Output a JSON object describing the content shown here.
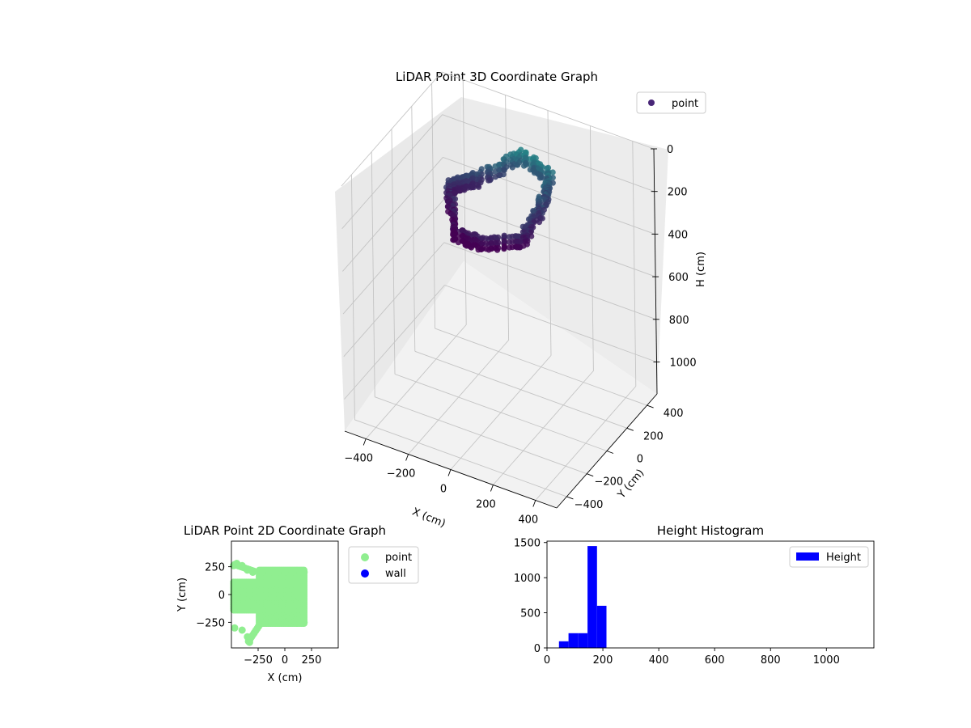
{
  "chart_data": [
    {
      "type": "scatter",
      "projection": "3d",
      "title": "LiDAR Point 3D Coordinate Graph",
      "xlabel": "X (cm)",
      "ylabel": "Y (cm)",
      "zlabel": "H (cm)",
      "xticks": [
        -400,
        -200,
        0,
        200,
        400
      ],
      "yticks": [
        -400,
        -200,
        0,
        200,
        400
      ],
      "zticks": [
        0,
        200,
        400,
        600,
        800,
        1000
      ],
      "zinverted": true,
      "legend": {
        "placement": "top-right",
        "entries": [
          {
            "label": "point",
            "color": "#482677"
          }
        ]
      },
      "colormap": "viridis",
      "series": [
        {
          "name": "point",
          "points": [
            {
              "x": -230,
              "y": 10,
              "h": 160
            },
            {
              "x": -200,
              "y": 60,
              "h": 150
            },
            {
              "x": -150,
              "y": 100,
              "h": 140
            },
            {
              "x": 0,
              "y": 250,
              "h": 60
            },
            {
              "x": 150,
              "y": 200,
              "h": 80
            },
            {
              "x": 180,
              "y": 50,
              "h": 130
            },
            {
              "x": 180,
              "y": -150,
              "h": 180
            },
            {
              "x": 20,
              "y": -230,
              "h": 200
            },
            {
              "x": -120,
              "y": -200,
              "h": 220
            }
          ]
        }
      ]
    },
    {
      "type": "scatter",
      "title": "LiDAR Point 2D Coordinate Graph",
      "xlabel": "X (cm)",
      "ylabel": "Y (cm)",
      "xticks": [
        -250,
        0,
        250
      ],
      "yticks": [
        250,
        0,
        -250
      ],
      "xlim": [
        -500,
        500
      ],
      "ylim": [
        -480,
        480
      ],
      "legend": {
        "placement": "outside-right",
        "entries": [
          {
            "label": "point",
            "color": "#90ee90"
          },
          {
            "label": "wall",
            "color": "#0000ff"
          }
        ]
      },
      "series": [
        {
          "name": "point",
          "color": "#90ee90",
          "points": [
            {
              "x": -480,
              "y": 260
            },
            {
              "x": -450,
              "y": 280
            },
            {
              "x": -400,
              "y": 260
            },
            {
              "x": -350,
              "y": 220
            },
            {
              "x": -300,
              "y": 200
            },
            {
              "x": -470,
              "y": 80
            },
            {
              "x": -460,
              "y": -100
            },
            {
              "x": -470,
              "y": -300
            },
            {
              "x": -400,
              "y": -320
            },
            {
              "x": -350,
              "y": -380
            },
            {
              "x": -330,
              "y": -430
            },
            {
              "x": 180,
              "y": 200
            },
            {
              "x": 180,
              "y": -250
            }
          ]
        },
        {
          "name": "wall",
          "color": "#0000ff",
          "points": []
        }
      ]
    },
    {
      "type": "bar",
      "title": "Height Histogram",
      "xlabel": "",
      "ylabel": "",
      "xticks": [
        0,
        200,
        400,
        600,
        800,
        1000
      ],
      "yticks": [
        0,
        500,
        1000,
        1500
      ],
      "xlim": [
        0,
        1170
      ],
      "ylim": [
        0,
        1520
      ],
      "legend": {
        "placement": "top-right",
        "entries": [
          {
            "label": "Height",
            "color": "#0000ff"
          }
        ]
      },
      "series": [
        {
          "name": "Height",
          "color": "#0000ff",
          "bins": [
            {
              "start": 43,
              "end": 77,
              "value": 95
            },
            {
              "start": 77,
              "end": 111,
              "value": 210
            },
            {
              "start": 111,
              "end": 145,
              "value": 210
            },
            {
              "start": 145,
              "end": 179,
              "value": 1450
            },
            {
              "start": 179,
              "end": 213,
              "value": 600
            }
          ]
        }
      ]
    }
  ]
}
